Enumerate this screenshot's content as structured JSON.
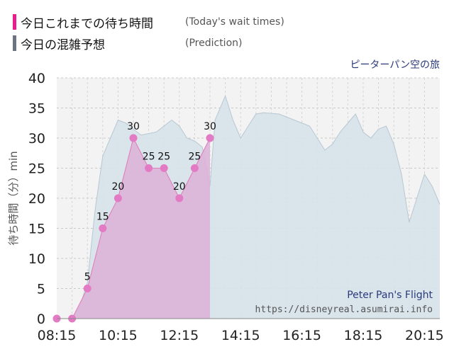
{
  "legend": {
    "actual_label": "今日これまでの待ち時間",
    "actual_label_en": "(Today's wait times)",
    "prediction_label": "今日の混雑予想",
    "prediction_label_en": "(Prediction)"
  },
  "colors": {
    "actual_swatch": "#e91e8c",
    "prediction_swatch": "#6b7280",
    "actual_fill": "#dcb4d8",
    "actual_line": "#e07ab8",
    "actual_point": "#e27bc4",
    "prediction_fill": "#d6e2ea",
    "prediction_line": "#b8c8d2",
    "plot_bg": "#f3f3f3",
    "watermark_title": "#2b3a7a"
  },
  "chart_data": {
    "type": "area",
    "attraction_title_ja": "ピーターパン空の旅",
    "watermark_title": "Peter Pan's Flight",
    "watermark_url": "https://disneyreal.asumirai.info",
    "ylabel": "待ち時間（分）min",
    "ylim": [
      0,
      40
    ],
    "yticks": [
      0,
      5,
      10,
      15,
      20,
      25,
      30,
      35,
      40
    ],
    "xlim": [
      "08:15",
      "20:45"
    ],
    "xticks": [
      "08:15",
      "10:15",
      "12:15",
      "14:15",
      "16:15",
      "18:15",
      "20:15"
    ],
    "grid": true,
    "series": [
      {
        "name": "今日これまでの待ち時間",
        "style": "area+points+labels",
        "x": [
          "08:15",
          "08:45",
          "09:15",
          "09:45",
          "10:15",
          "10:45",
          "11:15",
          "11:45",
          "12:15",
          "12:45",
          "13:15"
        ],
        "values": [
          0,
          0,
          5,
          15,
          20,
          30,
          25,
          25,
          20,
          25,
          30
        ],
        "labels": [
          "",
          "",
          "5",
          "15",
          "20",
          "30",
          "25",
          "25",
          "20",
          "25",
          "30"
        ]
      },
      {
        "name": "今日の混雑予想",
        "style": "area",
        "x": [
          "08:15",
          "08:45",
          "09:00",
          "09:15",
          "09:30",
          "09:45",
          "10:00",
          "10:15",
          "10:30",
          "11:00",
          "11:30",
          "12:00",
          "12:15",
          "12:30",
          "12:45",
          "13:00",
          "13:15",
          "13:25",
          "13:45",
          "14:00",
          "14:15",
          "14:30",
          "14:45",
          "15:00",
          "15:30",
          "16:00",
          "16:30",
          "17:00",
          "17:15",
          "17:30",
          "17:45",
          "18:00",
          "18:15",
          "18:30",
          "18:45",
          "19:00",
          "19:15",
          "19:30",
          "19:45",
          "20:00",
          "20:15",
          "20:30",
          "20:45"
        ],
        "values": [
          0,
          0,
          2,
          6,
          18,
          27,
          30,
          33,
          32.5,
          30.5,
          31,
          33,
          32,
          30,
          29.5,
          28.5,
          22,
          33,
          37,
          33,
          30,
          32,
          34,
          34.2,
          34,
          33,
          32,
          28,
          29,
          31,
          32.5,
          34,
          31,
          30,
          31.5,
          32,
          29,
          24,
          16,
          20,
          24,
          22,
          19
        ]
      }
    ]
  }
}
